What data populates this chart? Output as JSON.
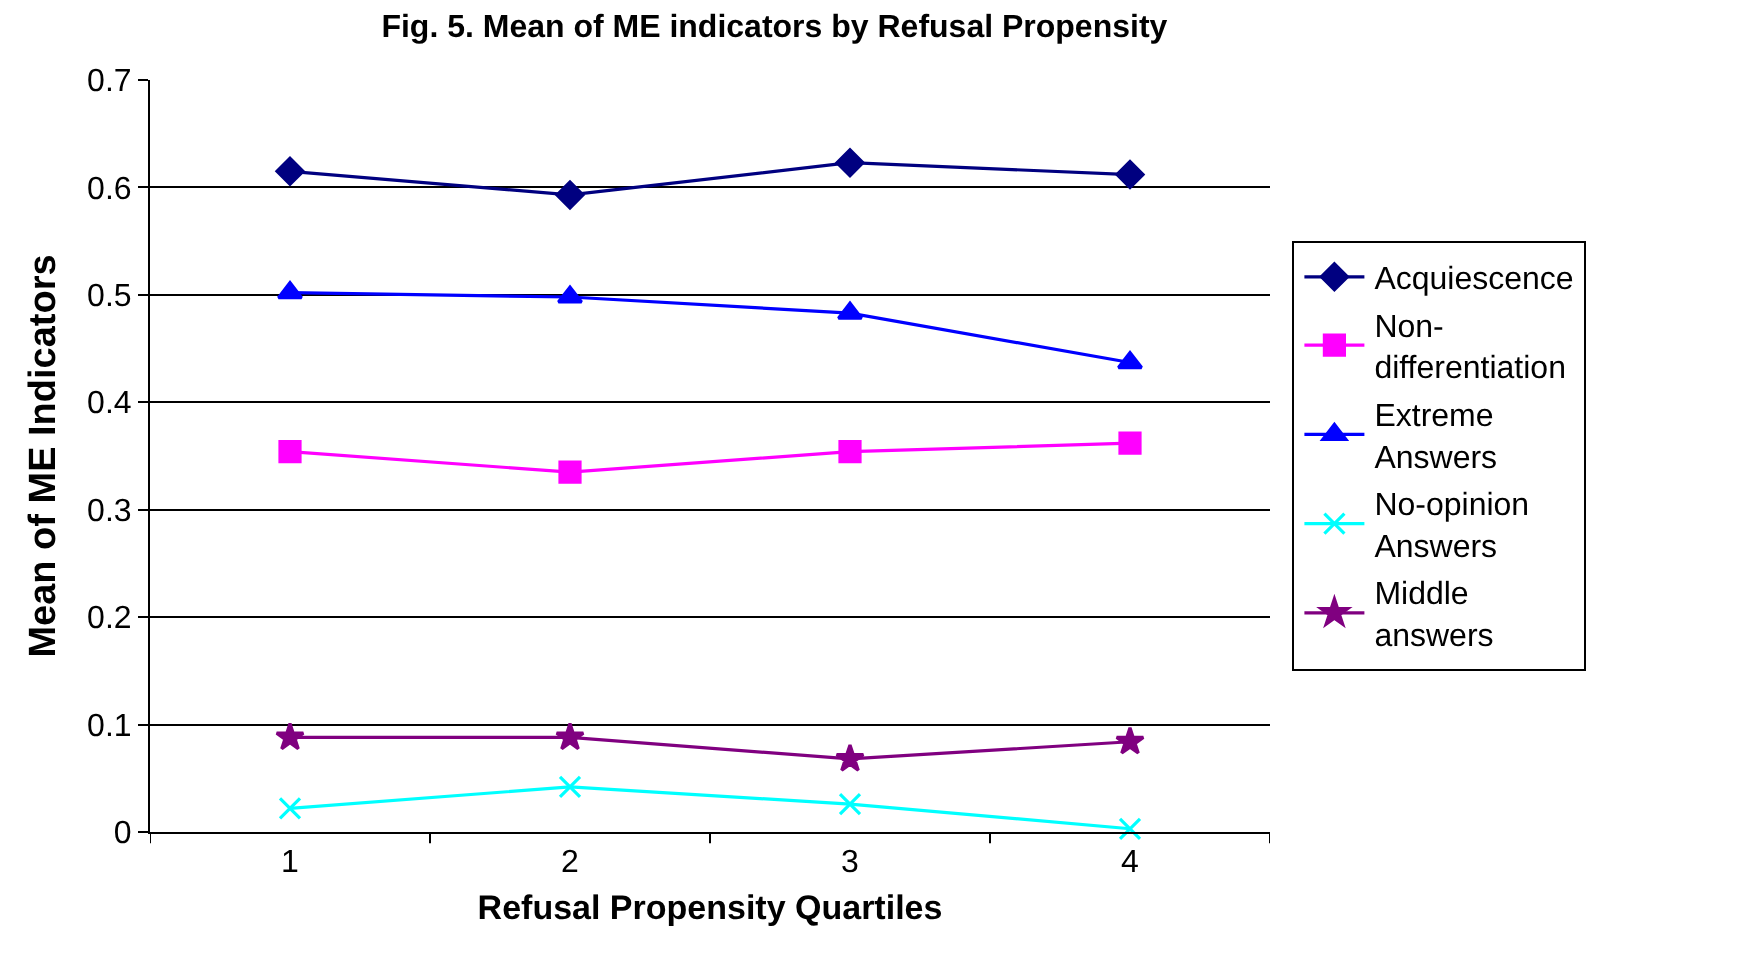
{
  "chart_data": {
    "type": "line",
    "title": "Fig. 5. Mean of ME indicators by Refusal Propensity",
    "xlabel": "Refusal Propensity Quartiles",
    "ylabel": "Mean of ME Indicators",
    "categories": [
      "1",
      "2",
      "3",
      "4"
    ],
    "series": [
      {
        "name": "Acquiescence",
        "color": "#000080",
        "marker": "diamond",
        "values": [
          0.615,
          0.593,
          0.623,
          0.612
        ]
      },
      {
        "name": "Non-differentiation",
        "color": "#ff00ff",
        "marker": "square",
        "values": [
          0.354,
          0.335,
          0.354,
          0.362
        ]
      },
      {
        "name": "Extreme Answers",
        "color": "#0000ff",
        "marker": "triangle",
        "values": [
          0.502,
          0.498,
          0.483,
          0.437
        ]
      },
      {
        "name": "No-opinion Answers",
        "color": "#00ffff",
        "marker": "cross",
        "values": [
          0.022,
          0.042,
          0.026,
          0.003
        ]
      },
      {
        "name": "Middle answers",
        "color": "#800080",
        "marker": "star",
        "values": [
          0.088,
          0.088,
          0.068,
          0.084
        ]
      }
    ],
    "ylim": [
      0,
      0.7
    ],
    "yticks": [
      0,
      0.1,
      0.2,
      0.3,
      0.4,
      0.5,
      0.6,
      0.7
    ],
    "grid": "y",
    "legend": "right",
    "line_style": "solid"
  }
}
